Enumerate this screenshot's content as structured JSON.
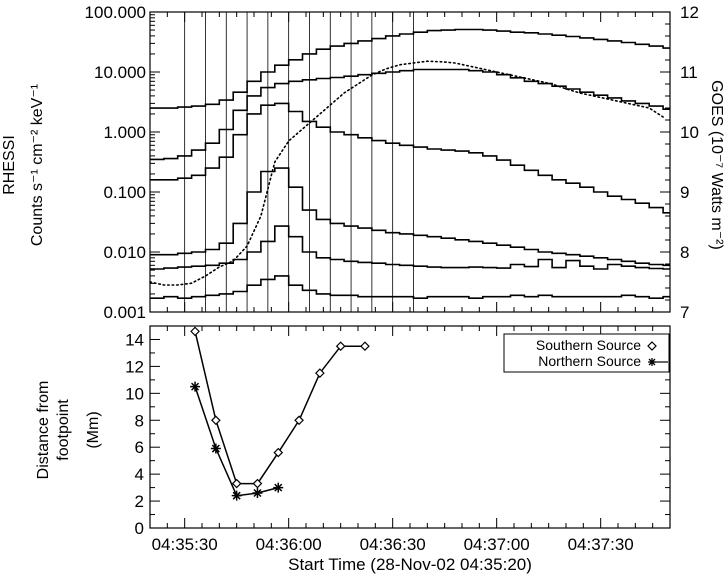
{
  "colors": {
    "line": "#000000",
    "background": "#ffffff"
  },
  "xaxis": {
    "title": "Start Time (28-Nov-02 04:35:20)",
    "tick_labels": [
      "04:35:30",
      "04:36:00",
      "04:36:30",
      "04:37:00",
      "04:37:30"
    ],
    "tick_seconds": [
      10,
      40,
      70,
      100,
      130
    ],
    "range_seconds": [
      0,
      150
    ]
  },
  "chart_data": [
    {
      "type": "line",
      "panel": "top",
      "left_axis": {
        "label_lines": [
          "RHESSI",
          "Counts s⁻¹ cm⁻² keV⁻¹"
        ],
        "scale": "log",
        "ylim": [
          0.001,
          100
        ],
        "tick_values": [
          0.001,
          0.01,
          0.1,
          1,
          10,
          100
        ],
        "tick_labels": [
          "0.001",
          "0.010",
          "0.100",
          "1.000",
          "10.000",
          "100.000"
        ]
      },
      "right_axis": {
        "label": "GOES (10⁻⁷ Watts m⁻²)",
        "scale": "linear",
        "ylim": [
          7,
          12
        ],
        "tick_values": [
          7,
          8,
          9,
          10,
          11,
          12
        ],
        "tick_labels": [
          "7",
          "8",
          "9",
          "10",
          "11",
          "12"
        ]
      },
      "bin_edges_seconds": [
        0,
        4,
        8,
        12,
        16,
        20,
        24,
        28,
        32,
        36,
        40,
        44,
        48,
        52,
        56,
        60,
        64,
        68,
        72,
        76,
        80,
        84,
        88,
        92,
        96,
        100,
        104,
        108,
        112,
        116,
        120,
        124,
        128,
        132,
        136,
        140,
        144,
        148,
        150
      ],
      "series": [
        {
          "style": "histogram",
          "values": [
            2.5,
            2.5,
            2.6,
            2.7,
            2.9,
            3.4,
            4.6,
            7.0,
            10.0,
            13.0,
            16.0,
            20.0,
            24.0,
            27.0,
            30.0,
            33.0,
            36.0,
            40.0,
            43.0,
            46.0,
            49.0,
            50.0,
            51.0,
            51.0,
            50.0,
            48.0,
            46.0,
            45.0,
            43.0,
            41.0,
            39.0,
            37.0,
            35.0,
            33.0,
            31.0,
            29.0,
            27.0,
            25.0
          ]
        },
        {
          "style": "histogram",
          "values": [
            0.35,
            0.36,
            0.4,
            0.5,
            0.65,
            1.1,
            2.3,
            4.0,
            5.5,
            6.4,
            7.0,
            7.4,
            7.8,
            8.1,
            8.5,
            9.0,
            9.5,
            10.0,
            10.5,
            11.0,
            11.0,
            11.0,
            11.0,
            10.5,
            10.0,
            9.0,
            8.0,
            7.0,
            6.4,
            5.8,
            5.2,
            4.6,
            4.1,
            3.7,
            3.3,
            3.0,
            2.7,
            2.4
          ]
        },
        {
          "style": "histogram",
          "values": [
            0.16,
            0.16,
            0.17,
            0.19,
            0.25,
            0.38,
            0.9,
            2.0,
            2.8,
            3.0,
            2.2,
            1.5,
            1.2,
            1.0,
            0.9,
            0.8,
            0.72,
            0.65,
            0.6,
            0.56,
            0.52,
            0.5,
            0.48,
            0.45,
            0.4,
            0.34,
            0.28,
            0.23,
            0.19,
            0.16,
            0.14,
            0.12,
            0.1,
            0.085,
            0.075,
            0.065,
            0.055,
            0.045
          ]
        },
        {
          "style": "histogram",
          "values": [
            0.009,
            0.009,
            0.0095,
            0.01,
            0.011,
            0.014,
            0.03,
            0.1,
            0.22,
            0.25,
            0.12,
            0.05,
            0.035,
            0.03,
            0.027,
            0.025,
            0.023,
            0.021,
            0.02,
            0.019,
            0.018,
            0.017,
            0.016,
            0.015,
            0.014,
            0.013,
            0.012,
            0.011,
            0.01,
            0.0095,
            0.009,
            0.0085,
            0.008,
            0.0075,
            0.007,
            0.0065,
            0.0062,
            0.006
          ]
        },
        {
          "style": "histogram",
          "values": [
            0.0052,
            0.0054,
            0.0056,
            0.0058,
            0.006,
            0.0065,
            0.0075,
            0.01,
            0.015,
            0.027,
            0.018,
            0.01,
            0.008,
            0.0075,
            0.007,
            0.0067,
            0.0065,
            0.0062,
            0.006,
            0.0058,
            0.0056,
            0.0055,
            0.0055,
            0.0056,
            0.0055,
            0.0054,
            0.0062,
            0.0057,
            0.0075,
            0.0055,
            0.0072,
            0.0058,
            0.0052,
            0.0062,
            0.0058,
            0.0055,
            0.0053,
            0.0052
          ]
        },
        {
          "style": "histogram",
          "values": [
            0.0017,
            0.0018,
            0.0017,
            0.0018,
            0.0019,
            0.002,
            0.0022,
            0.0028,
            0.0035,
            0.004,
            0.0028,
            0.0023,
            0.002,
            0.0019,
            0.0019,
            0.0018,
            0.0018,
            0.0018,
            0.0018,
            0.0017,
            0.0018,
            0.0018,
            0.0018,
            0.0017,
            0.0018,
            0.0018,
            0.0019,
            0.0018,
            0.0019,
            0.0018,
            0.0018,
            0.0018,
            0.0018,
            0.0018,
            0.0019,
            0.0018,
            0.0017,
            0.0018
          ]
        },
        {
          "style": "dotted",
          "axis": "right",
          "x": [
            0,
            4,
            8,
            12,
            16,
            20,
            24,
            28,
            32,
            36,
            40,
            44,
            48,
            52,
            56,
            60,
            64,
            68,
            72,
            76,
            80,
            84,
            88,
            92,
            96,
            100,
            104,
            108,
            112,
            116,
            120,
            124,
            128,
            132,
            136,
            140,
            144,
            148
          ],
          "values": [
            7.5,
            7.45,
            7.45,
            7.48,
            7.6,
            7.75,
            7.85,
            8.1,
            8.6,
            9.5,
            9.85,
            10.05,
            10.25,
            10.45,
            10.65,
            10.8,
            10.95,
            11.05,
            11.12,
            11.15,
            11.18,
            11.17,
            11.15,
            11.1,
            11.05,
            11.0,
            10.95,
            10.9,
            10.85,
            10.8,
            10.72,
            10.65,
            10.6,
            10.55,
            10.5,
            10.45,
            10.4,
            10.25
          ]
        }
      ],
      "vertical_lines_seconds": [
        10,
        16,
        22,
        28,
        34,
        40,
        46,
        52,
        58,
        64,
        70,
        76
      ]
    },
    {
      "type": "line",
      "panel": "bottom",
      "yaxis": {
        "label_lines": [
          "Distance from",
          "footpoint",
          "(Mm)"
        ],
        "ylim": [
          0,
          15
        ],
        "tick_values": [
          0,
          2,
          4,
          6,
          8,
          10,
          12,
          14
        ],
        "tick_labels": [
          "0",
          "2",
          "4",
          "6",
          "8",
          "10",
          "12",
          "14"
        ]
      },
      "legend": {
        "position": "top-right"
      },
      "series": [
        {
          "name": "Southern Source",
          "marker": "diamond",
          "x": [
            13,
            19,
            25,
            31,
            37,
            43,
            49,
            55,
            62
          ],
          "values": [
            14.6,
            8.0,
            3.3,
            3.3,
            5.6,
            8.0,
            11.5,
            13.5,
            13.5
          ]
        },
        {
          "name": "Northern Source",
          "marker": "asterisk",
          "x": [
            13,
            19,
            25,
            31,
            37
          ],
          "values": [
            10.5,
            5.9,
            2.4,
            2.6,
            3.0
          ]
        }
      ]
    }
  ]
}
